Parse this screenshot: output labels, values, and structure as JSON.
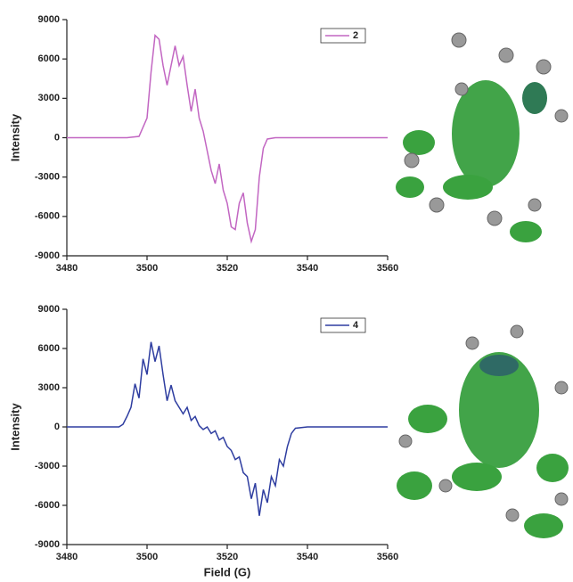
{
  "chart_data": [
    {
      "type": "line",
      "ylabel": "Intensity",
      "x": [
        3480,
        3495,
        3498,
        3500,
        3501,
        3502,
        3503,
        3504,
        3505,
        3506,
        3507,
        3508,
        3509,
        3510,
        3511,
        3512,
        3513,
        3514,
        3515,
        3516,
        3517,
        3518,
        3519,
        3520,
        3521,
        3522,
        3523,
        3524,
        3525,
        3526,
        3527,
        3528,
        3529,
        3530,
        3532,
        3560
      ],
      "series": [
        {
          "name": "2",
          "color": "#c266c2",
          "values": [
            0,
            0,
            100,
            1500,
            5000,
            7800,
            7500,
            5500,
            4000,
            5500,
            7000,
            5500,
            6200,
            4000,
            2000,
            3700,
            1500,
            500,
            -1000,
            -2500,
            -3500,
            -2000,
            -4000,
            -5000,
            -6800,
            -7000,
            -5000,
            -4200,
            -6500,
            -7900,
            -7000,
            -3000,
            -800,
            -100,
            0,
            0
          ]
        }
      ],
      "xlim": [
        3480,
        3560
      ],
      "xticks": [
        3480,
        3500,
        3520,
        3540,
        3560
      ],
      "ylim": [
        -9000,
        9000
      ],
      "yticks": [
        9000,
        6000,
        3000,
        0,
        -3000,
        -6000,
        -9000
      ]
    },
    {
      "type": "line",
      "ylabel": "Intensity",
      "xlabel": "Field (G)",
      "x": [
        3480,
        3493,
        3494,
        3495,
        3496,
        3497,
        3498,
        3499,
        3500,
        3501,
        3502,
        3503,
        3504,
        3505,
        3506,
        3507,
        3508,
        3509,
        3510,
        3511,
        3512,
        3513,
        3514,
        3515,
        3516,
        3517,
        3518,
        3519,
        3520,
        3521,
        3522,
        3523,
        3524,
        3525,
        3526,
        3527,
        3528,
        3529,
        3530,
        3531,
        3532,
        3533,
        3534,
        3535,
        3536,
        3537,
        3540,
        3560
      ],
      "series": [
        {
          "name": "4",
          "color": "#2e3da0",
          "values": [
            0,
            0,
            200,
            800,
            1500,
            3300,
            2200,
            5200,
            4000,
            6500,
            5000,
            6200,
            4000,
            2000,
            3200,
            2000,
            1500,
            1000,
            1500,
            500,
            800,
            100,
            -200,
            0,
            -500,
            -300,
            -1000,
            -800,
            -1500,
            -1800,
            -2500,
            -2300,
            -3500,
            -3800,
            -5500,
            -4300,
            -6800,
            -4800,
            -5800,
            -3800,
            -4500,
            -2500,
            -3000,
            -1500,
            -500,
            -100,
            0,
            0
          ]
        }
      ],
      "xlim": [
        3480,
        3560
      ],
      "xticks": [
        3480,
        3500,
        3520,
        3540,
        3560
      ],
      "ylim": [
        -9000,
        9000
      ],
      "yticks": [
        9000,
        6000,
        3000,
        0,
        -3000,
        -6000,
        -9000
      ]
    }
  ]
}
